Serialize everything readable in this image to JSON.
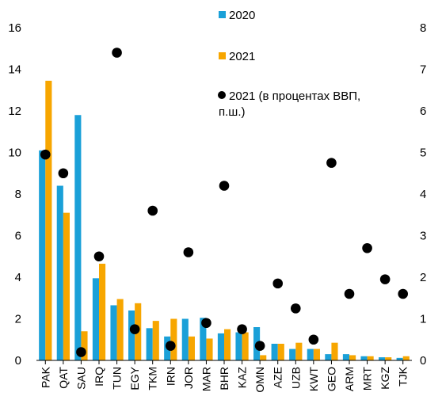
{
  "chart_data": {
    "type": "bar",
    "categories": [
      "PAK",
      "QAT",
      "SAU",
      "IRQ",
      "TUN",
      "EGY",
      "TKM",
      "IRN",
      "JOR",
      "MAR",
      "BHR",
      "KAZ",
      "OMN",
      "AZE",
      "UZB",
      "KWT",
      "GEO",
      "ARM",
      "MRT",
      "KGZ",
      "TJK"
    ],
    "series": [
      {
        "name": "2020",
        "kind": "bar",
        "axis": "left",
        "color": "#1aa0d8",
        "values": [
          10.1,
          8.4,
          11.8,
          3.95,
          2.65,
          2.4,
          1.55,
          1.15,
          2.0,
          2.05,
          1.3,
          1.35,
          1.6,
          0.8,
          0.55,
          0.55,
          0.3,
          0.3,
          0.2,
          0.15,
          0.12
        ]
      },
      {
        "name": "2021",
        "kind": "bar",
        "axis": "left",
        "color": "#f7a600",
        "values": [
          13.45,
          7.1,
          1.4,
          4.65,
          2.95,
          2.75,
          1.9,
          2.0,
          1.15,
          1.05,
          1.5,
          1.35,
          0.25,
          0.8,
          0.85,
          0.55,
          0.85,
          0.25,
          0.2,
          0.15,
          0.2
        ]
      },
      {
        "name": "2021 (в процентах ВВП, п.ш.)",
        "kind": "scatter",
        "axis": "right",
        "color": "#000000",
        "values": [
          4.95,
          4.5,
          0.2,
          2.5,
          7.4,
          0.75,
          3.6,
          0.35,
          2.6,
          0.9,
          4.2,
          0.75,
          0.35,
          1.85,
          1.25,
          0.5,
          4.75,
          1.6,
          2.7,
          1.95,
          1.6
        ]
      }
    ],
    "ylim": [
      0,
      16
    ],
    "yticks": [
      "0",
      "2",
      "4",
      "6",
      "8",
      "10",
      "12",
      "14",
      "16"
    ],
    "y2lim": [
      0,
      8
    ],
    "y2ticks": [
      "0",
      "1",
      "2",
      "3",
      "4",
      "5",
      "6",
      "7",
      "8"
    ],
    "grid": false,
    "legend_placement": "top-right inside plot",
    "legend": [
      {
        "label": "2020",
        "marker": "square",
        "color": "#1aa0d8"
      },
      {
        "label": "2021",
        "marker": "square",
        "color": "#f7a600"
      },
      {
        "label_line1": "2021 (в процентах ВВП,",
        "label_line2": "п.ш.)",
        "marker": "circle",
        "color": "#000000"
      }
    ]
  }
}
